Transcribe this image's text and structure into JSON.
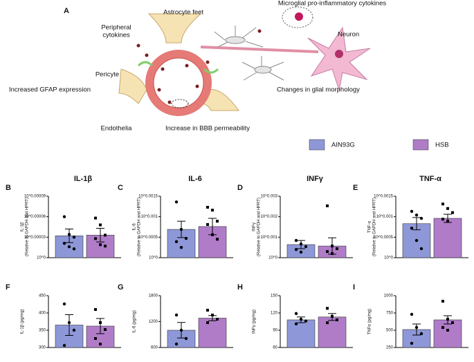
{
  "diagram": {
    "panel": "A",
    "labels": [
      "Astrocyte feet",
      "Microglial pro-inflammatory cytokines",
      [
        "Peripheral",
        "cytokines"
      ],
      "Neuron",
      "Pericyte",
      "Increased GFAP expression",
      "Changes in glial morphology",
      "Endothelia",
      "Increase in BBB permeability"
    ]
  },
  "legend": [
    {
      "name": "AIN93G",
      "color": "#8e98d8"
    },
    {
      "name": "HSB",
      "color": "#b07cc8"
    }
  ],
  "chart_data": [
    {
      "type": "bar",
      "panel": "B",
      "title": "IL-1β",
      "ylabel": "IL-1β",
      "ylabel_note": "(Relative to GAPDH and HPRT)",
      "ylim": [
        0,
        9e-05
      ],
      "yticks": [
        {
          "value": 0,
          "label": "10^0"
        },
        {
          "value": 3e-05,
          "label": "10^0.00003"
        },
        {
          "value": 6e-05,
          "label": "10^0.00006"
        },
        {
          "value": 9e-05,
          "label": "10^0.00009"
        }
      ],
      "series": [
        {
          "values": [
            3.2e-05
          ],
          "errors": [
            1e-05
          ],
          "points": [
            6e-05,
            3.4e-05,
            3e-05,
            2.1e-05,
            1.6e-05,
            1.3e-05
          ]
        },
        {
          "values": [
            3.3e-05
          ],
          "errors": [
            1e-05
          ],
          "points": [
            5.8e-05,
            4.8e-05,
            3.3e-05,
            2.8e-05,
            1.9e-05,
            1.7e-05
          ]
        }
      ]
    },
    {
      "type": "bar",
      "panel": "C",
      "title": "IL-6",
      "ylabel": "IL-6",
      "ylabel_note": "(Relative to GAPDH and HPRT)",
      "ylim": [
        0,
        0.0015
      ],
      "yticks": [
        {
          "value": 0,
          "label": "10^0"
        },
        {
          "value": 0.0005,
          "label": "10^0.0005"
        },
        {
          "value": 0.001,
          "label": "10^0.001"
        },
        {
          "value": 0.0015,
          "label": "10^0.0015"
        }
      ],
      "series": [
        {
          "values": [
            0.00069
          ],
          "errors": [
            0.0002
          ],
          "points": [
            0.00136,
            0.00069,
            0.00047,
            0.00039,
            0.00025
          ]
        },
        {
          "values": [
            0.00076
          ],
          "errors": [
            0.0002
          ],
          "points": [
            0.00123,
            0.00116,
            0.00089,
            0.00081,
            0.00056,
            0.00045
          ]
        }
      ]
    },
    {
      "type": "bar",
      "panel": "D",
      "title": "INFγ",
      "ylabel": "INFγ",
      "ylabel_note": "(Relative to GAPDH and HPRT)",
      "ylim": [
        0,
        0.003
      ],
      "yticks": [
        {
          "value": 0,
          "label": "10^0"
        },
        {
          "value": 0.001,
          "label": "10^0.001"
        },
        {
          "value": 0.002,
          "label": "10^0.002"
        },
        {
          "value": 0.003,
          "label": "10^0.003"
        }
      ],
      "series": [
        {
          "values": [
            0.00064
          ],
          "errors": [
            0.0002
          ],
          "points": [
            0.00084,
            0.00067,
            0.00054,
            0.0004,
            0.00027
          ]
        },
        {
          "values": [
            0.00057
          ],
          "errors": [
            0.0004
          ],
          "points": [
            0.00253,
            0.00057,
            0.00044,
            0.0003,
            0.0002
          ]
        }
      ]
    },
    {
      "type": "bar",
      "panel": "E",
      "title": "TNF-α",
      "ylabel": "TNF-α",
      "ylabel_note": "(Relative to GAPDH and HPRT)",
      "ylim": [
        0,
        0.0015
      ],
      "yticks": [
        {
          "value": 0,
          "label": "10^0"
        },
        {
          "value": 0.0005,
          "label": "10^0.0005"
        },
        {
          "value": 0.001,
          "label": "10^0.001"
        },
        {
          "value": 0.0015,
          "label": "10^0.0015"
        }
      ],
      "series": [
        {
          "values": [
            0.00083
          ],
          "errors": [
            0.00015
          ],
          "points": [
            0.00113,
            0.00104,
            0.00096,
            0.00072,
            0.00042,
            0.00022
          ]
        },
        {
          "values": [
            0.00096
          ],
          "errors": [
            0.0001
          ],
          "points": [
            0.00131,
            0.0012,
            0.0011,
            0.00094,
            0.00089
          ]
        }
      ]
    },
    {
      "type": "bar",
      "panel": "F",
      "ylabel": "IL-1β (pg/mg)",
      "ylim": [
        300,
        450
      ],
      "yticks": [
        300,
        350,
        400,
        450
      ],
      "series": [
        {
          "values": [
            365
          ],
          "errors": [
            30
          ],
          "points": [
            426,
            372,
            350,
            306
          ]
        },
        {
          "values": [
            362
          ],
          "errors": [
            22
          ],
          "points": [
            410,
            372,
            352,
            326,
            310
          ]
        }
      ]
    },
    {
      "type": "bar",
      "panel": "G",
      "ylabel": "IL-6 (pg/mg)",
      "ylim": [
        600,
        1800
      ],
      "yticks": [
        600,
        1200,
        1800
      ],
      "series": [
        {
          "values": [
            1000
          ],
          "errors": [
            180
          ],
          "points": [
            1352,
            1000,
            808,
            680
          ]
        },
        {
          "values": [
            1280
          ],
          "errors": [
            60
          ],
          "points": [
            1464,
            1352,
            1256,
            1176
          ]
        }
      ]
    },
    {
      "type": "bar",
      "panel": "H",
      "ylabel": "INFγ (pg/mg)",
      "ylim": [
        60,
        150
      ],
      "yticks": [
        60,
        90,
        120,
        150
      ],
      "series": [
        {
          "values": [
            108
          ],
          "errors": [
            5
          ],
          "points": [
            119,
            109,
            106,
            101
          ]
        },
        {
          "values": [
            113
          ],
          "errors": [
            6
          ],
          "points": [
            128,
            114,
            108,
            103
          ]
        }
      ]
    },
    {
      "type": "bar",
      "panel": "I",
      "ylabel": "TNFα (pg/mg)",
      "ylim": [
        250,
        1000
      ],
      "yticks": [
        250,
        500,
        750,
        1000
      ],
      "series": [
        {
          "values": [
            510
          ],
          "errors": [
            80
          ],
          "points": [
            730,
            540,
            450,
            310
          ]
        },
        {
          "values": [
            650
          ],
          "errors": [
            60
          ],
          "points": [
            920,
            660,
            610,
            540,
            500
          ]
        }
      ]
    }
  ]
}
